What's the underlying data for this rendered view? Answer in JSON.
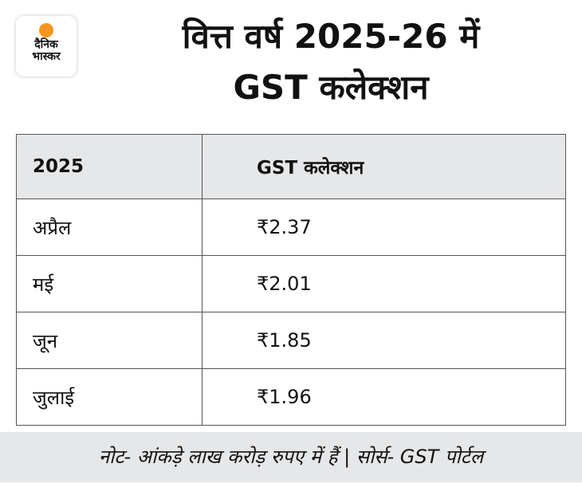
{
  "logo": {
    "line1": "दैनिक",
    "line2": "भास्कर",
    "accent": "#f7941d"
  },
  "title": {
    "line1": "वित्त वर्ष 2025-26 में",
    "line2": "GST कलेक्शन"
  },
  "chart_data": {
    "type": "table",
    "title": "वित्त वर्ष 2025-26 में GST कलेक्शन",
    "columns": [
      "2025",
      "GST कलेक्शन"
    ],
    "rows": [
      {
        "month": "अप्रैल",
        "value": "₹2.37"
      },
      {
        "month": "मई",
        "value": "₹2.01"
      },
      {
        "month": "जून",
        "value": "₹1.85"
      },
      {
        "month": "जुलाई",
        "value": "₹1.96"
      }
    ]
  },
  "footer": {
    "note": "नोट- आंकड़े लाख करोड़ रुपए में हैं | सोर्स- GST पोर्टल"
  }
}
